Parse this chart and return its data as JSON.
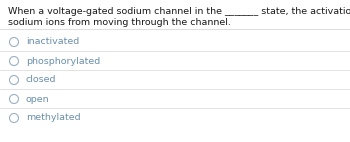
{
  "question_line1": "When a voltage-gated sodium channel in the _______ state, the activation gate is shut to prevent",
  "question_line2": "sodium ions from moving through the channel.",
  "options": [
    "inactivated",
    "phosphorylated",
    "closed",
    "open",
    "methylated"
  ],
  "question_color": "#1a1a1a",
  "option_color": "#6a8fac",
  "bg_color": "#ffffff",
  "divider_color": "#d8d8d8",
  "question_fontsize": 6.8,
  "option_fontsize": 6.8,
  "circle_edge_color": "#9ab0c4",
  "circle_face_color": "#ffffff"
}
